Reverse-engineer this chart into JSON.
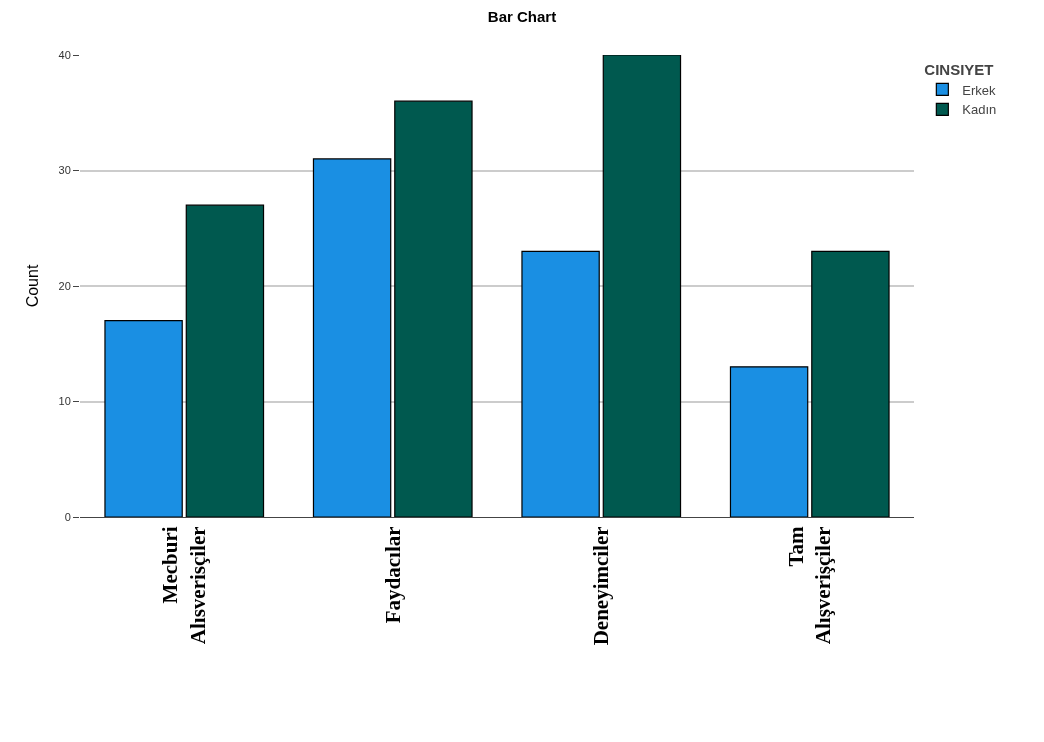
{
  "chart_data": {
    "type": "bar",
    "title": "Bar Chart",
    "ylabel": "Count",
    "legend_title": "CINSIYET",
    "categories": [
      "Mecburi\nAlısverisçiler",
      "Faydacılar",
      "Deneyimciler",
      "Tam\nAlışverişçiler"
    ],
    "series": [
      {
        "name": "Erkek",
        "color": "#1a8fe3",
        "values": [
          17,
          31,
          23,
          13
        ]
      },
      {
        "name": "Kadın",
        "color": "#00594f",
        "values": [
          27,
          36,
          40,
          23
        ]
      }
    ],
    "ylim": [
      0,
      40
    ],
    "yticks": [
      0,
      10,
      20,
      30,
      40
    ],
    "grid": "y",
    "legend": "top right"
  }
}
